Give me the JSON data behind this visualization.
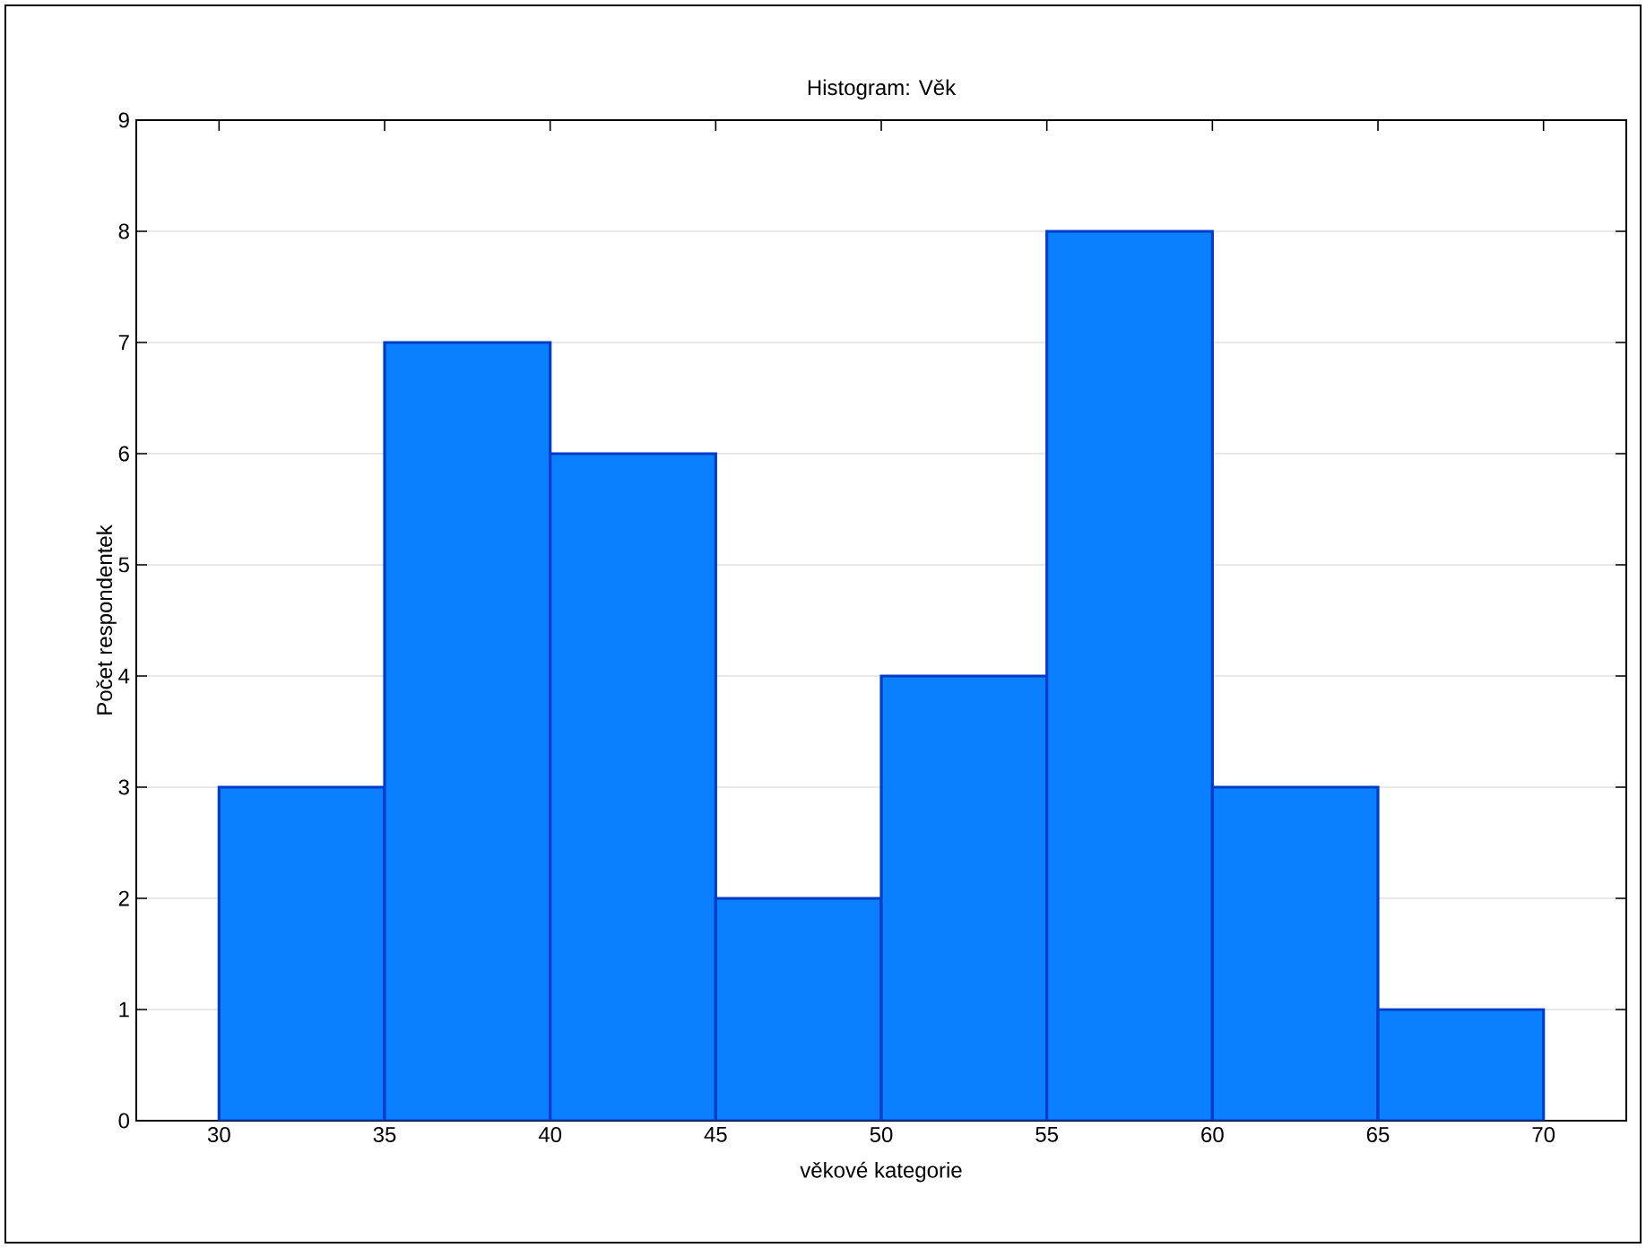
{
  "chart_data": {
    "type": "histogram",
    "title": "Histogram: Věk",
    "xlabel": "věkové kategorie",
    "ylabel": "Počet respondentek",
    "bins": [
      30,
      35,
      40,
      45,
      50,
      55,
      60,
      65,
      70
    ],
    "values": [
      3,
      7,
      6,
      2,
      4,
      8,
      3,
      1
    ],
    "color": "#0a80ff",
    "xlim": [
      27.5,
      72.5
    ],
    "xticks": [
      30,
      35,
      40,
      45,
      50,
      55,
      60,
      65,
      70
    ],
    "ylim": [
      0,
      9
    ],
    "yticks": [
      0,
      1,
      2,
      3,
      4,
      5,
      6,
      7,
      8,
      9
    ],
    "grid": "y"
  }
}
